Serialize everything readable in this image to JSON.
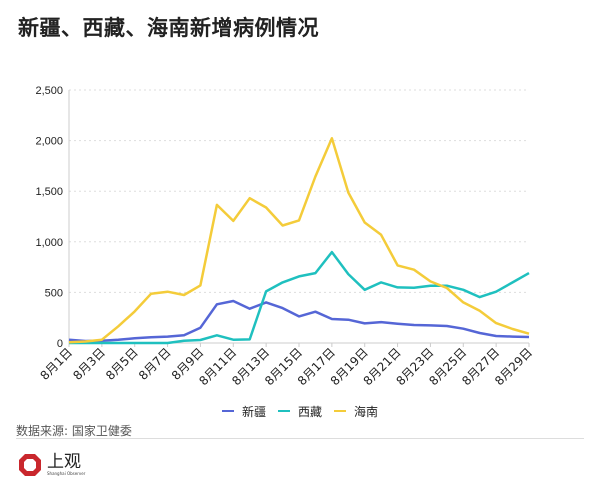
{
  "title": "新疆、西藏、海南新增病例情况",
  "source": "数据来源: 国家卫健委",
  "logo": {
    "cn": "上观",
    "en": "Shanghai Observer"
  },
  "chart_data": {
    "type": "line",
    "title": "新疆、西藏、海南新增病例情况",
    "x": [
      "8月1日",
      "8月2日",
      "8月3日",
      "8月4日",
      "8月5日",
      "8月6日",
      "8月7日",
      "8月8日",
      "8月9日",
      "8月10日",
      "8月11日",
      "8月12日",
      "8月13日",
      "8月14日",
      "8月15日",
      "8月16日",
      "8月17日",
      "8月18日",
      "8月19日",
      "8月20日",
      "8月21日",
      "8月22日",
      "8月23日",
      "8月24日",
      "8月25日",
      "8月26日",
      "8月27日",
      "8月28日",
      "8月29日"
    ],
    "x_tick_labels": [
      "8月1日",
      "8月3日",
      "8月5日",
      "8月7日",
      "8月9日",
      "8月11日",
      "8月13日",
      "8月15日",
      "8月17日",
      "8月19日",
      "8月21日",
      "8月23日",
      "8月25日",
      "8月27日",
      "8月29日"
    ],
    "y_tick_labels": [
      "0",
      "500",
      "1,000",
      "1,500",
      "2,000",
      "2,500"
    ],
    "ylim": [
      0,
      2500
    ],
    "grid": true,
    "legend_position": "bottom",
    "series": [
      {
        "name": "新疆",
        "color": "#5566d6",
        "values": [
          33,
          20,
          23,
          33,
          46,
          56,
          63,
          76,
          151,
          382,
          415,
          339,
          401,
          345,
          263,
          309,
          237,
          230,
          194,
          207,
          191,
          178,
          174,
          168,
          141,
          99,
          69,
          63,
          59
        ]
      },
      {
        "name": "西藏",
        "color": "#1fc0bf",
        "values": [
          0,
          0,
          0,
          0,
          0,
          0,
          0,
          23,
          30,
          76,
          33,
          36,
          510,
          599,
          658,
          691,
          898,
          681,
          526,
          599,
          549,
          546,
          566,
          566,
          526,
          454,
          507,
          599,
          691
        ]
      },
      {
        "name": "海南",
        "color": "#f4cc3a",
        "values": [
          7,
          15,
          33,
          165,
          312,
          487,
          507,
          474,
          569,
          1365,
          1207,
          1431,
          1339,
          1161,
          1211,
          1645,
          2023,
          1487,
          1191,
          1069,
          767,
          724,
          609,
          543,
          401,
          319,
          197,
          138,
          92
        ]
      }
    ]
  }
}
